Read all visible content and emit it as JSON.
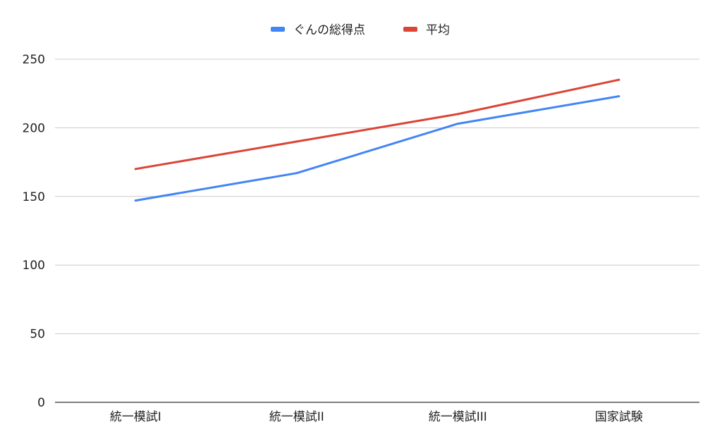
{
  "chart_data": {
    "type": "line",
    "title": "",
    "xlabel": "",
    "ylabel": "",
    "categories": [
      "統一模試I",
      "統一模試II",
      "統一模試III",
      "国家試験"
    ],
    "series": [
      {
        "name": "ぐんの総得点",
        "color": "#4285F4",
        "values": [
          147,
          167,
          203,
          223
        ]
      },
      {
        "name": "平均",
        "color": "#DB4437",
        "values": [
          170,
          190,
          210,
          235
        ]
      }
    ],
    "ylim": [
      0,
      250
    ],
    "yticks": [
      0,
      50,
      100,
      150,
      200,
      250
    ],
    "grid": true,
    "legend": "top"
  }
}
